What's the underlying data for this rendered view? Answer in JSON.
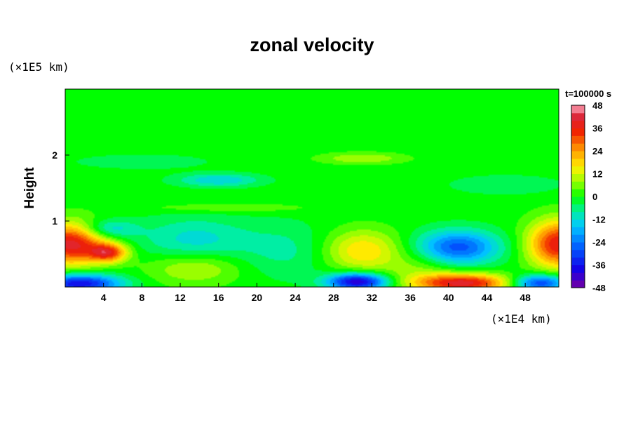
{
  "chart_data": {
    "type": "heatmap",
    "title": "zonal velocity",
    "ylabel": "Height",
    "xlabel": "",
    "x_unit": "(×1E4 km)",
    "y_unit": "(×1E5 km)",
    "time_label": "t=100000 s",
    "xlim": [
      0,
      51.5
    ],
    "ylim": [
      0,
      3.0
    ],
    "x_ticks": [
      4,
      8,
      12,
      16,
      20,
      24,
      28,
      32,
      36,
      40,
      44,
      48
    ],
    "y_ticks": [
      1,
      2
    ],
    "colorbar": {
      "min": -48,
      "max": 48,
      "step": 4,
      "tick_labels": [
        48,
        36,
        24,
        12,
        0,
        -12,
        -24,
        -36,
        -48
      ]
    },
    "background_value": 0,
    "features": [
      {
        "x": 0.5,
        "y": 0.65,
        "value": 40,
        "sx": 2.5,
        "sy": 0.22
      },
      {
        "x": 4.5,
        "y": 0.52,
        "value": 32,
        "sx": 1.4,
        "sy": 0.1
      },
      {
        "x": 1.5,
        "y": 0.05,
        "value": -38,
        "sx": 3.0,
        "sy": 0.1
      },
      {
        "x": 4.5,
        "y": 0.88,
        "value": -14,
        "sx": 2.0,
        "sy": 0.1
      },
      {
        "x": 13.5,
        "y": 0.3,
        "value": 12,
        "sx": 3.5,
        "sy": 0.18
      },
      {
        "x": 13.5,
        "y": 0.7,
        "value": -12,
        "sx": 4.0,
        "sy": 0.25
      },
      {
        "x": 16.0,
        "y": 1.62,
        "value": -14,
        "sx": 3.0,
        "sy": 0.07
      },
      {
        "x": 17.0,
        "y": 1.2,
        "value": 6,
        "sx": 6.0,
        "sy": 0.05
      },
      {
        "x": 23.0,
        "y": 0.55,
        "value": -7,
        "sx": 3.5,
        "sy": 0.3
      },
      {
        "x": 31.0,
        "y": 0.55,
        "value": 18,
        "sx": 2.8,
        "sy": 0.22
      },
      {
        "x": 30.5,
        "y": 0.08,
        "value": -42,
        "sx": 2.2,
        "sy": 0.09
      },
      {
        "x": 31.0,
        "y": 1.95,
        "value": 10,
        "sx": 3.0,
        "sy": 0.06
      },
      {
        "x": 41.0,
        "y": 0.6,
        "value": -28,
        "sx": 3.0,
        "sy": 0.18
      },
      {
        "x": 41.5,
        "y": 0.06,
        "value": 40,
        "sx": 3.5,
        "sy": 0.1
      },
      {
        "x": 37.0,
        "y": 0.25,
        "value": 7,
        "sx": 2.5,
        "sy": 0.2
      },
      {
        "x": 51.5,
        "y": 0.65,
        "value": 38,
        "sx": 2.2,
        "sy": 0.25
      },
      {
        "x": 49.5,
        "y": 0.06,
        "value": -32,
        "sx": 2.0,
        "sy": 0.09
      },
      {
        "x": 46.0,
        "y": 1.55,
        "value": -6,
        "sx": 4.0,
        "sy": 0.1
      },
      {
        "x": 8.0,
        "y": 1.9,
        "value": -5,
        "sx": 5.0,
        "sy": 0.08
      }
    ],
    "colors": {
      "background": "#ffffff",
      "frame": "#000000",
      "zero_field": "#00ff00"
    }
  }
}
